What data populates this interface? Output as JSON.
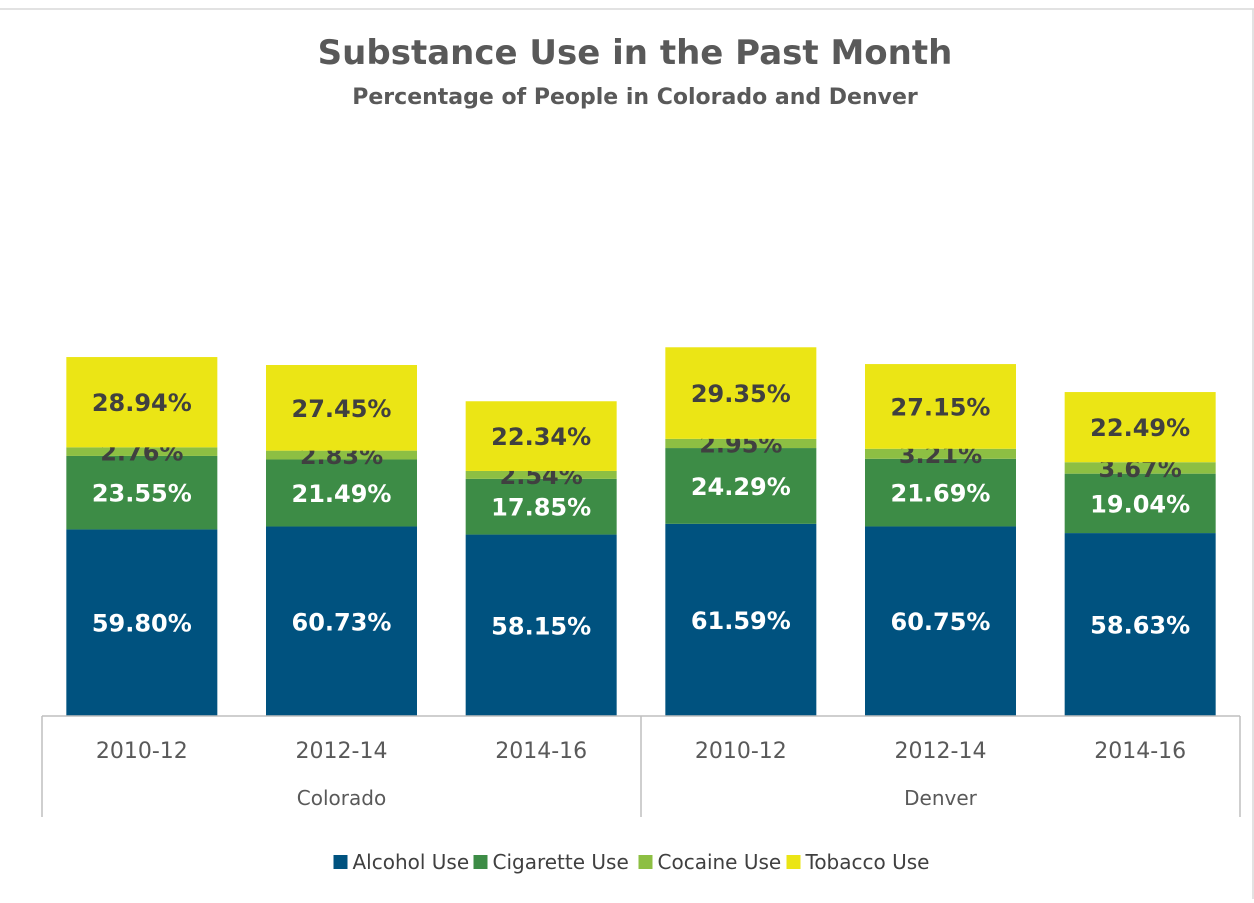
{
  "chart_data": {
    "type": "bar",
    "stacked": true,
    "title": "Substance Use in the Past Month",
    "subtitle": "Percentage of People in Colorado and Denver",
    "categories": [
      "2010-12",
      "2012-14",
      "2014-16",
      "2010-12",
      "2012-14",
      "2014-16"
    ],
    "groups": [
      {
        "name": "Colorado",
        "count": 3
      },
      {
        "name": "Denver",
        "count": 3
      }
    ],
    "series": [
      {
        "name": "Alcohol Use",
        "color": "#00527F",
        "label_color": "#FFFFFF",
        "values": [
          59.8,
          60.73,
          58.15,
          61.59,
          60.75,
          58.63
        ],
        "labels": [
          "59.80%",
          "60.73%",
          "58.15%",
          "61.59%",
          "60.75%",
          "58.63%"
        ]
      },
      {
        "name": "Cigarette Use",
        "color": "#3D8C46",
        "label_color": "#FFFFFF",
        "values": [
          23.55,
          21.49,
          17.85,
          24.29,
          21.69,
          19.04
        ],
        "labels": [
          "23.55%",
          "21.49%",
          "17.85%",
          "24.29%",
          "21.69%",
          "19.04%"
        ]
      },
      {
        "name": "Cocaine Use",
        "color": "#8DBF43",
        "label_color": "#404040",
        "values": [
          2.76,
          2.83,
          2.54,
          2.95,
          3.21,
          3.67
        ],
        "labels": [
          "2.76%",
          "2.83%",
          "2.54%",
          "2.95%",
          "3.21%",
          "3.67%"
        ]
      },
      {
        "name": "Tobacco Use",
        "color": "#EBE515",
        "label_color": "#404040",
        "values": [
          28.94,
          27.45,
          22.34,
          29.35,
          27.15,
          22.49
        ],
        "labels": [
          "28.94%",
          "27.45%",
          "22.34%",
          "29.35%",
          "27.15%",
          "22.49%"
        ]
      }
    ],
    "grid": false,
    "legend_position": "bottom"
  }
}
